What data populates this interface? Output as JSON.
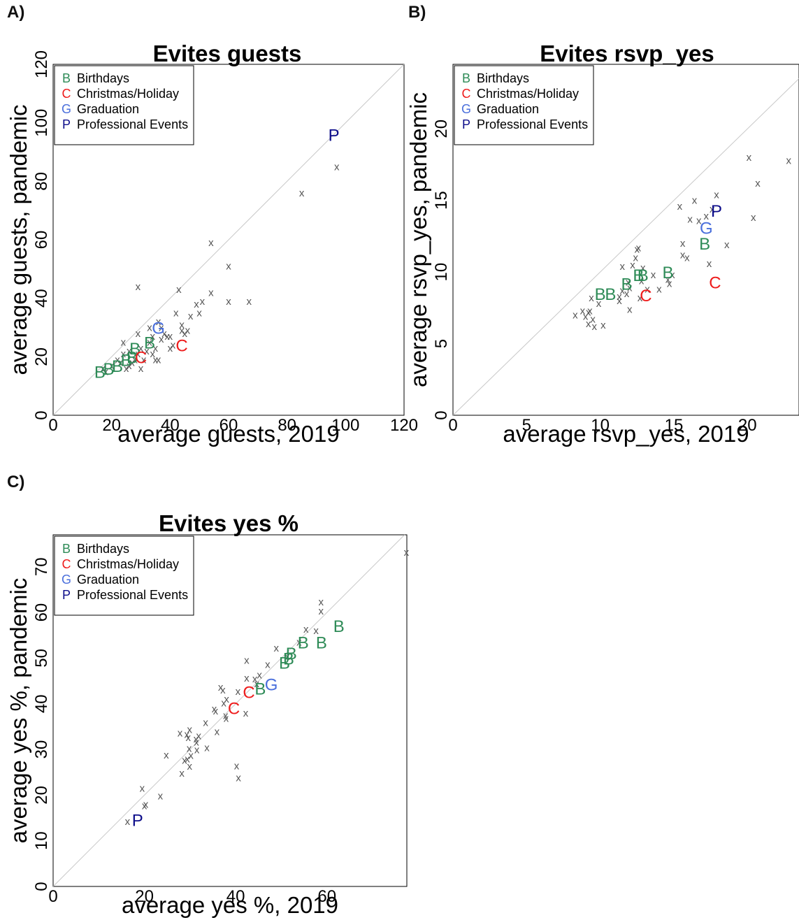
{
  "panels": {
    "a": {
      "label": "A)"
    },
    "b": {
      "label": "B)"
    },
    "c": {
      "label": "C)"
    }
  },
  "categories": [
    {
      "code": "B",
      "name": "Birthdays",
      "color": "#2e8b57"
    },
    {
      "code": "C",
      "name": "Christmas/Holiday",
      "color": "#ee1c1c"
    },
    {
      "code": "G",
      "name": "Graduation",
      "color": "#4a6fdc"
    },
    {
      "code": "P",
      "name": "Professional Events",
      "color": "#0d0d8a"
    }
  ],
  "chart_data": [
    {
      "type": "scatter",
      "title": "Evites guests",
      "xlabel": "average guests, 2019",
      "ylabel": "average guests, pandemic",
      "xlim": [
        0,
        120
      ],
      "ylim": [
        0,
        120
      ],
      "xticks": [
        "0",
        "20",
        "40",
        "60",
        "80",
        "100",
        "120"
      ],
      "yticks": [
        "0",
        "20",
        "40",
        "60",
        "80",
        "100",
        "120"
      ],
      "diagonal": true,
      "legend_position": "top-left",
      "other_marker": "x",
      "other_points": [
        [
          17,
          16
        ],
        [
          18,
          15
        ],
        [
          20,
          17
        ],
        [
          22,
          19
        ],
        [
          23,
          18
        ],
        [
          24,
          21
        ],
        [
          24,
          25
        ],
        [
          25,
          16
        ],
        [
          26,
          17
        ],
        [
          26,
          22
        ],
        [
          27,
          18
        ],
        [
          28,
          19
        ],
        [
          29,
          21
        ],
        [
          29,
          28
        ],
        [
          29,
          44
        ],
        [
          30,
          23
        ],
        [
          30,
          16
        ],
        [
          31,
          19
        ],
        [
          32,
          22
        ],
        [
          33,
          25
        ],
        [
          33,
          30
        ],
        [
          34,
          21
        ],
        [
          34,
          27
        ],
        [
          35,
          19
        ],
        [
          35,
          23
        ],
        [
          36,
          19
        ],
        [
          36,
          32
        ],
        [
          37,
          30
        ],
        [
          37,
          26
        ],
        [
          38,
          28
        ],
        [
          39,
          27
        ],
        [
          40,
          23
        ],
        [
          40,
          27
        ],
        [
          41,
          24
        ],
        [
          42,
          35
        ],
        [
          43,
          43
        ],
        [
          44,
          29
        ],
        [
          44,
          31
        ],
        [
          45,
          28
        ],
        [
          46,
          29
        ],
        [
          47,
          34
        ],
        [
          49,
          38
        ],
        [
          50,
          35
        ],
        [
          51,
          39
        ],
        [
          54,
          42
        ],
        [
          54,
          59
        ],
        [
          60,
          51
        ],
        [
          60,
          39
        ],
        [
          67,
          39
        ],
        [
          85,
          76
        ],
        [
          97,
          85
        ]
      ],
      "labeled_points": [
        {
          "code": "B",
          "x": 16,
          "y": 15
        },
        {
          "code": "B",
          "x": 19,
          "y": 16
        },
        {
          "code": "B",
          "x": 22,
          "y": 17
        },
        {
          "code": "B",
          "x": 25,
          "y": 19
        },
        {
          "code": "B",
          "x": 27,
          "y": 20
        },
        {
          "code": "B",
          "x": 28,
          "y": 23
        },
        {
          "code": "B",
          "x": 33,
          "y": 25
        },
        {
          "code": "C",
          "x": 30,
          "y": 20
        },
        {
          "code": "C",
          "x": 44,
          "y": 24
        },
        {
          "code": "G",
          "x": 36,
          "y": 30
        },
        {
          "code": "P",
          "x": 96,
          "y": 96
        }
      ]
    },
    {
      "type": "scatter",
      "title": "Evites rsvp_yes",
      "xlabel": "average rsvp_yes, 2019",
      "ylabel": "average rsvp_yes, pandemic",
      "xlim": [
        0,
        23.5
      ],
      "ylim": [
        0,
        24.5
      ],
      "xticks": [
        "0",
        "5",
        "10",
        "15",
        "20"
      ],
      "yticks": [
        "0",
        "5",
        "10",
        "15",
        "20"
      ],
      "diagonal": true,
      "legend_position": "top-left",
      "other_marker": "x",
      "other_points": [
        [
          8.3,
          7.0
        ],
        [
          8.8,
          7.3
        ],
        [
          9.0,
          6.9
        ],
        [
          9.2,
          6.4
        ],
        [
          9.2,
          7.2
        ],
        [
          9.3,
          7.3
        ],
        [
          9.4,
          8.2
        ],
        [
          9.5,
          6.7
        ],
        [
          9.6,
          6.2
        ],
        [
          9.9,
          7.8
        ],
        [
          10.2,
          6.3
        ],
        [
          11.3,
          8.0
        ],
        [
          11.3,
          8.3
        ],
        [
          11.5,
          8.7
        ],
        [
          11.5,
          10.4
        ],
        [
          11.8,
          8.5
        ],
        [
          11.9,
          9.3
        ],
        [
          12.0,
          7.4
        ],
        [
          12.0,
          8.9
        ],
        [
          12.2,
          10.5
        ],
        [
          12.4,
          11.0
        ],
        [
          12.5,
          11.6
        ],
        [
          12.6,
          11.7
        ],
        [
          12.7,
          8.2
        ],
        [
          12.8,
          9.4
        ],
        [
          12.9,
          10.3
        ],
        [
          13.2,
          8.8
        ],
        [
          13.6,
          9.8
        ],
        [
          14.0,
          8.8
        ],
        [
          14.6,
          9.5
        ],
        [
          14.7,
          9.2
        ],
        [
          14.9,
          9.8
        ],
        [
          15.4,
          14.6
        ],
        [
          15.6,
          11.2
        ],
        [
          15.6,
          12.0
        ],
        [
          15.9,
          11.0
        ],
        [
          16.1,
          13.7
        ],
        [
          16.4,
          15.0
        ],
        [
          16.7,
          13.6
        ],
        [
          17.2,
          13.9
        ],
        [
          17.4,
          10.6
        ],
        [
          17.6,
          14.4
        ],
        [
          17.9,
          15.4
        ],
        [
          18.6,
          11.9
        ],
        [
          20.1,
          18.0
        ],
        [
          20.4,
          13.8
        ],
        [
          20.7,
          16.2
        ],
        [
          22.8,
          17.8
        ]
      ],
      "labeled_points": [
        {
          "code": "B",
          "x": 10.0,
          "y": 8.5
        },
        {
          "code": "B",
          "x": 10.7,
          "y": 8.5
        },
        {
          "code": "B",
          "x": 11.8,
          "y": 9.2
        },
        {
          "code": "B",
          "x": 12.6,
          "y": 9.8
        },
        {
          "code": "B",
          "x": 12.9,
          "y": 9.8
        },
        {
          "code": "B",
          "x": 14.6,
          "y": 10.0
        },
        {
          "code": "B",
          "x": 17.1,
          "y": 12.0
        },
        {
          "code": "C",
          "x": 13.1,
          "y": 8.4
        },
        {
          "code": "C",
          "x": 17.8,
          "y": 9.3
        },
        {
          "code": "G",
          "x": 17.2,
          "y": 13.1
        },
        {
          "code": "P",
          "x": 17.9,
          "y": 14.3
        }
      ]
    },
    {
      "type": "scatter",
      "title": "Evites yes %",
      "xlabel": "average yes %, 2019",
      "ylabel": "average yes %, pandemic",
      "xlim": [
        0,
        77.5
      ],
      "ylim": [
        0,
        77
      ],
      "xticks": [
        "0",
        "20",
        "40",
        "60"
      ],
      "yticks": [
        "0",
        "10",
        "20",
        "30",
        "40",
        "50",
        "60",
        "70"
      ],
      "diagonal": true,
      "legend_position": "top-left",
      "other_marker": "x",
      "other_points": [
        [
          16.3,
          14.2
        ],
        [
          19.5,
          21.5
        ],
        [
          20.0,
          17.7
        ],
        [
          20.3,
          18.0
        ],
        [
          23.5,
          19.8
        ],
        [
          24.8,
          28.8
        ],
        [
          27.8,
          33.6
        ],
        [
          28.2,
          24.8
        ],
        [
          28.8,
          27.6
        ],
        [
          29.3,
          33.3
        ],
        [
          29.4,
          27.9
        ],
        [
          29.6,
          32.6
        ],
        [
          29.8,
          30.2
        ],
        [
          29.9,
          34.4
        ],
        [
          29.9,
          26.3
        ],
        [
          30.2,
          28.7
        ],
        [
          31.3,
          32.3
        ],
        [
          31.4,
          31.6
        ],
        [
          31.5,
          29.9
        ],
        [
          31.9,
          33.0
        ],
        [
          33.4,
          35.9
        ],
        [
          33.7,
          30.4
        ],
        [
          35.3,
          38.9
        ],
        [
          35.6,
          38.4
        ],
        [
          35.9,
          33.9
        ],
        [
          36.7,
          43.6
        ],
        [
          37.2,
          43.0
        ],
        [
          37.4,
          40.2
        ],
        [
          37.8,
          37.4
        ],
        [
          37.9,
          36.8
        ],
        [
          38.0,
          41.0
        ],
        [
          40.2,
          26.4
        ],
        [
          40.5,
          42.7
        ],
        [
          40.6,
          23.8
        ],
        [
          42.2,
          38.0
        ],
        [
          42.4,
          49.5
        ],
        [
          42.4,
          45.6
        ],
        [
          44.2,
          45.5
        ],
        [
          44.6,
          44.4
        ],
        [
          45.2,
          46.3
        ],
        [
          47.0,
          48.6
        ],
        [
          48.9,
          52.2
        ],
        [
          51.3,
          50.4
        ],
        [
          53.9,
          53.5
        ],
        [
          55.4,
          56.3
        ],
        [
          57.6,
          56.0
        ],
        [
          58.7,
          62.3
        ],
        [
          58.7,
          60.3
        ],
        [
          77.4,
          73.2
        ]
      ],
      "labeled_points": [
        {
          "code": "B",
          "x": 50.7,
          "y": 49.1
        },
        {
          "code": "B",
          "x": 51.6,
          "y": 50.0
        },
        {
          "code": "B",
          "x": 52.2,
          "y": 51.1
        },
        {
          "code": "B",
          "x": 54.8,
          "y": 53.5
        },
        {
          "code": "B",
          "x": 58.8,
          "y": 53.5
        },
        {
          "code": "B",
          "x": 62.6,
          "y": 57.1
        },
        {
          "code": "B",
          "x": 45.4,
          "y": 43.4
        },
        {
          "code": "C",
          "x": 39.6,
          "y": 39.1
        },
        {
          "code": "C",
          "x": 42.9,
          "y": 42.6
        },
        {
          "code": "G",
          "x": 47.8,
          "y": 44.3
        },
        {
          "code": "P",
          "x": 18.5,
          "y": 14.6
        }
      ]
    }
  ]
}
